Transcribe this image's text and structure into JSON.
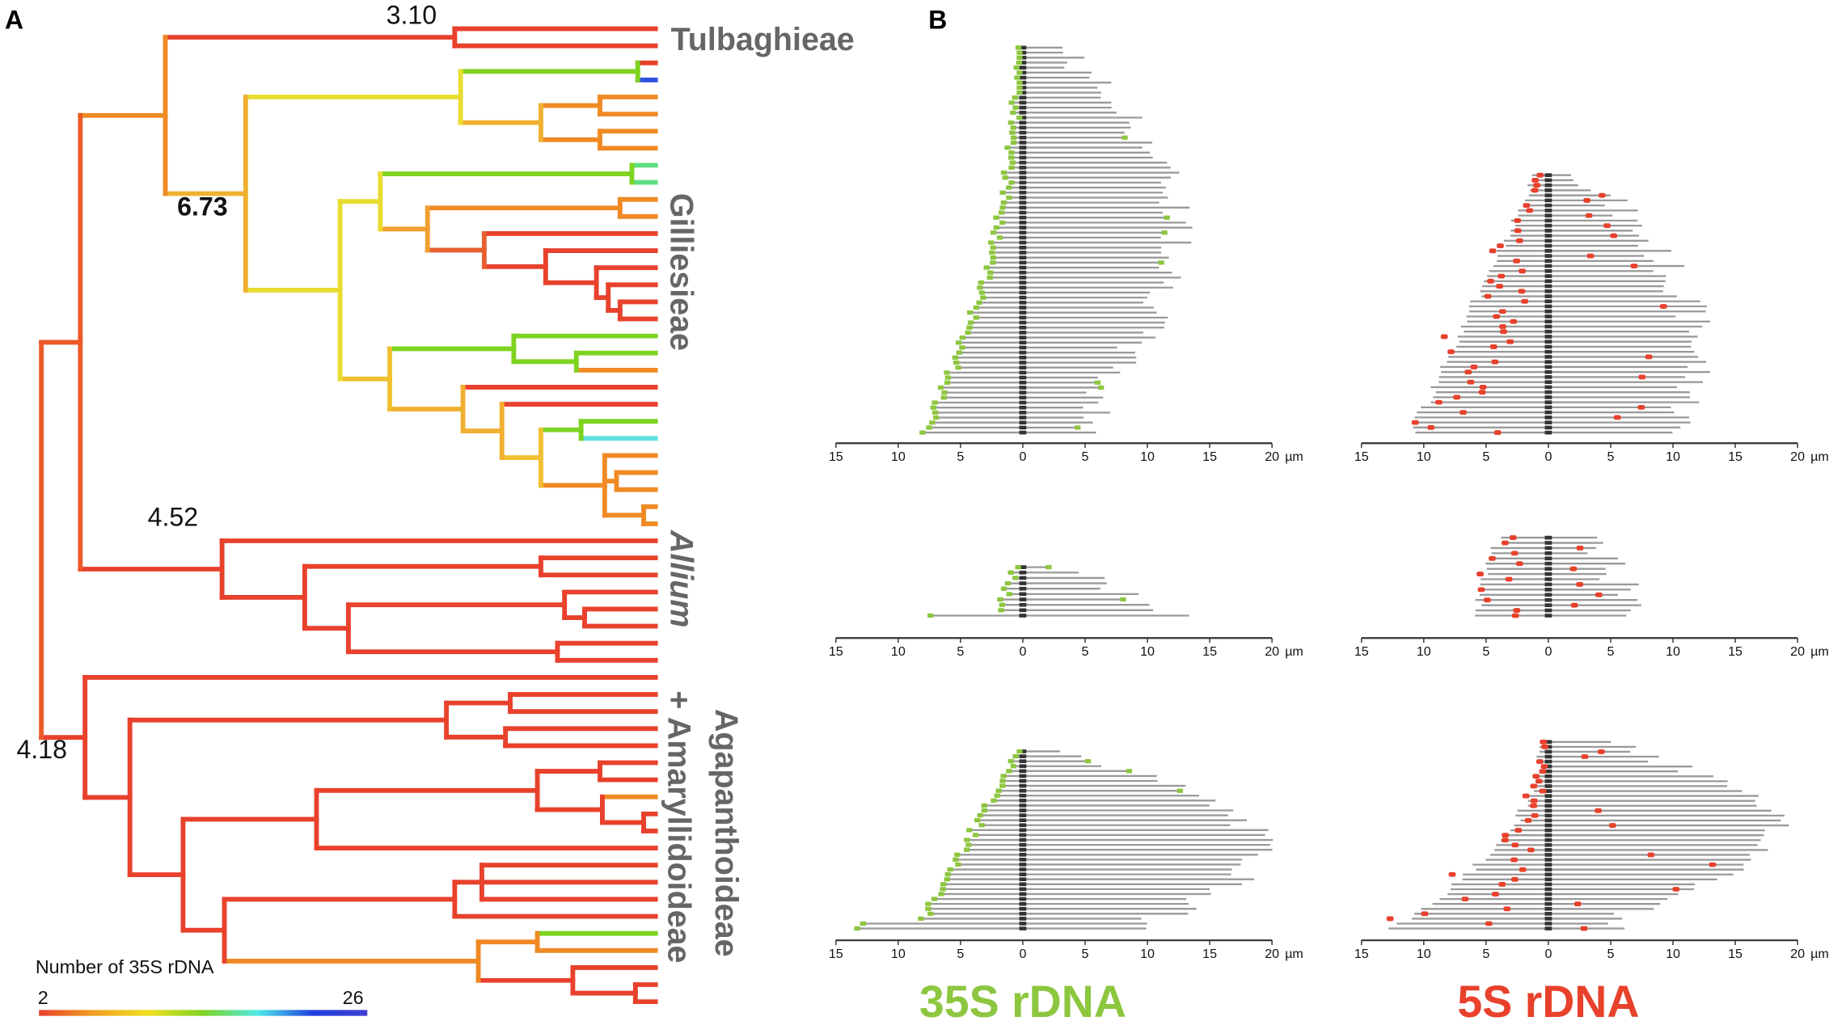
{
  "panels": {
    "a": "A",
    "b": "B"
  },
  "clades": {
    "tulbaghieae": "Tulbaghieae",
    "gilliesieae": "Gilliesieae",
    "allium": "Allium",
    "agapanthoideae": "Agapanthoideae",
    "amaryllidoideae": "+ Amaryllidoideae"
  },
  "node_values": {
    "tulbaghieae": "3.10",
    "gilliesieae": "6.73",
    "allium": "4.52",
    "root": "4.18"
  },
  "legend": {
    "title": "Number of 35S rDNA",
    "min": "2",
    "max": "26",
    "colors": [
      "#e8412c",
      "#f0a020",
      "#f0e020",
      "#7ed321",
      "#50e8e8",
      "#2040e0",
      "#4040d0"
    ]
  },
  "axis": {
    "ticks": [
      "15",
      "10",
      "5",
      "0",
      "5",
      "10",
      "15",
      "20"
    ],
    "unit": "µm"
  },
  "bottom_labels": {
    "rdna35s": "35S rDNA",
    "rdna5s": "5S rDNA"
  },
  "colors": {
    "rdna35s": "#8dc63f",
    "rdna5s": "#e8412c",
    "chromosome": "#9a9a9a",
    "centromere": "#333333",
    "clade_text": "#666666"
  }
}
